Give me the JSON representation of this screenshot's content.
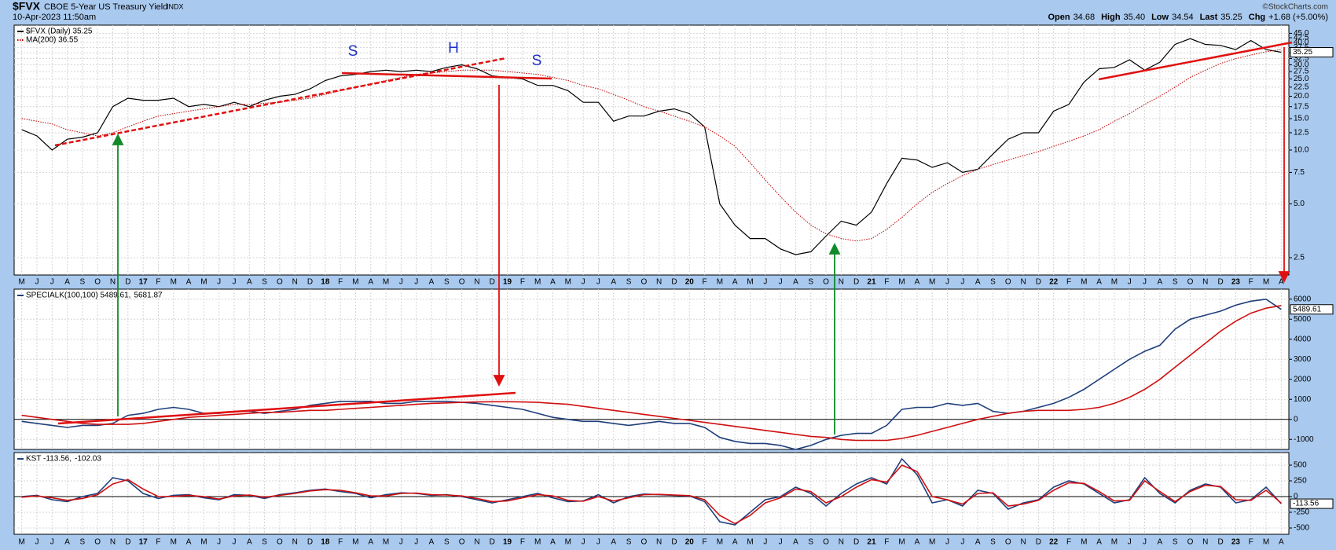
{
  "header": {
    "symbol": "$FVX",
    "name": "CBOE 5-Year US Treasury Yield",
    "exchange": "INDX",
    "date": "10-Apr-2023 11:50am",
    "credit": "©StockCharts.com",
    "quote": [
      {
        "label": "Open",
        "value": "34.68"
      },
      {
        "label": "High",
        "value": "35.40"
      },
      {
        "label": "Low",
        "value": "34.54"
      },
      {
        "label": "Last",
        "value": "35.25"
      },
      {
        "label": "Chg",
        "value": "+1.68 (+5.00%)"
      }
    ]
  },
  "annotations": [
    "S",
    "H",
    "S"
  ],
  "chart_data": [
    {
      "type": "line",
      "log_scale": true,
      "grid": true,
      "last_label": "35.25",
      "categories": [
        "M",
        "J",
        "J",
        "A",
        "S",
        "O",
        "N",
        "D",
        "17",
        "F",
        "M",
        "A",
        "M",
        "J",
        "J",
        "A",
        "S",
        "O",
        "N",
        "D",
        "18",
        "F",
        "M",
        "A",
        "M",
        "J",
        "J",
        "A",
        "S",
        "O",
        "N",
        "D",
        "19",
        "F",
        "M",
        "A",
        "M",
        "J",
        "J",
        "A",
        "S",
        "O",
        "N",
        "D",
        "20",
        "F",
        "M",
        "A",
        "M",
        "J",
        "J",
        "A",
        "S",
        "O",
        "N",
        "D",
        "21",
        "F",
        "M",
        "A",
        "M",
        "J",
        "J",
        "A",
        "S",
        "O",
        "N",
        "D",
        "22",
        "F",
        "M",
        "A",
        "M",
        "J",
        "J",
        "A",
        "S",
        "O",
        "N",
        "D",
        "23",
        "F",
        "M",
        "A"
      ],
      "series": [
        {
          "name": "$FVX (Daily) 35.25",
          "color": "#000000",
          "style": "solid",
          "values": [
            13,
            12,
            10,
            11.5,
            11.8,
            12.5,
            17.5,
            19.5,
            19,
            19,
            19.5,
            17.5,
            18,
            17.5,
            18.5,
            17.5,
            19,
            20,
            20.5,
            22,
            24.5,
            26,
            26.5,
            27.5,
            28,
            27.5,
            28,
            27.5,
            29,
            30,
            28.5,
            26,
            25.5,
            25,
            23,
            23,
            21.5,
            18.5,
            18.5,
            14.5,
            15.5,
            15.5,
            16.5,
            17,
            16,
            13.5,
            5,
            3.8,
            3.2,
            3.2,
            2.8,
            2.6,
            2.7,
            3.3,
            4,
            3.8,
            4.5,
            6.5,
            9,
            8.8,
            8,
            8.5,
            7.5,
            7.8,
            9.5,
            11.5,
            12.5,
            12.5,
            16.5,
            18,
            24,
            28.5,
            29,
            32,
            28,
            31,
            39,
            42,
            39,
            38.5,
            36.5,
            41,
            36.5,
            35.25
          ]
        },
        {
          "name": "MA(200) 36.55",
          "color": "#c00000",
          "style": "dotted",
          "values": [
            15,
            14.5,
            14,
            13,
            12.5,
            12,
            12.5,
            13.5,
            14.5,
            15.5,
            16,
            16.5,
            17,
            17.5,
            18,
            18,
            18.3,
            18.5,
            19,
            19.5,
            20.5,
            21.5,
            22.5,
            23.5,
            24.5,
            25.5,
            26.5,
            27,
            27.5,
            28,
            28,
            28,
            27.5,
            27,
            26.5,
            25.5,
            24.5,
            23,
            22,
            20.5,
            19,
            17.5,
            16.5,
            15.5,
            14.5,
            13.5,
            12,
            10.5,
            8.5,
            6.8,
            5.5,
            4.5,
            3.8,
            3.4,
            3.2,
            3.1,
            3.2,
            3.6,
            4.2,
            5,
            5.8,
            6.5,
            7.2,
            7.8,
            8.3,
            8.8,
            9.3,
            9.8,
            10.5,
            11.2,
            12,
            13,
            14.5,
            16,
            18,
            20,
            22.5,
            25.5,
            28,
            30.5,
            32.5,
            34,
            35.5,
            36.55
          ]
        }
      ],
      "ylim": [
        2,
        50
      ],
      "yticks": [
        2.5,
        {
          "value": 5,
          "label": "5.0"
        },
        7.5,
        {
          "value": 10,
          "label": "10.0"
        },
        12.5,
        {
          "value": 15,
          "label": "15.0"
        },
        17.5,
        {
          "value": 20,
          "label": "20.0"
        },
        22.5,
        {
          "value": 25,
          "label": "25.0"
        },
        27.5,
        {
          "value": 30,
          "label": "30.0"
        },
        32.5,
        {
          "value": 35,
          "label": "35.0"
        },
        37.5,
        {
          "value": 40,
          "label": "40.0"
        },
        42.5,
        {
          "value": 45,
          "label": "45.0"
        }
      ]
    },
    {
      "type": "line",
      "log_scale": false,
      "grid": true,
      "last_label": "5489.61",
      "series": [
        {
          "name": "SPECIALK(100,100) 5489.61,",
          "color": "#1f3f7a",
          "style": "solid",
          "values": [
            -100,
            -200,
            -300,
            -400,
            -300,
            -300,
            -200,
            200,
            300,
            500,
            600,
            500,
            300,
            300,
            400,
            400,
            300,
            400,
            500,
            700,
            800,
            900,
            900,
            900,
            800,
            800,
            900,
            900,
            900,
            850,
            800,
            700,
            600,
            500,
            300,
            100,
            0,
            -100,
            -100,
            -200,
            -300,
            -200,
            -100,
            -200,
            -200,
            -400,
            -900,
            -1100,
            -1200,
            -1200,
            -1300,
            -1500,
            -1300,
            -1000,
            -800,
            -700,
            -700,
            -300,
            500,
            600,
            600,
            800,
            700,
            800,
            400,
            300,
            400,
            600,
            800,
            1100,
            1500,
            2000,
            2500,
            3000,
            3400,
            3700,
            4500,
            5000,
            5200,
            5400,
            5700,
            5900,
            6000,
            5489.61
          ]
        },
        {
          "name": "5681.87",
          "color": "#d01010",
          "style": "solid",
          "values": [
            200,
            100,
            0,
            -100,
            -200,
            -250,
            -250,
            -250,
            -200,
            -100,
            0,
            100,
            150,
            200,
            250,
            300,
            350,
            350,
            400,
            450,
            450,
            500,
            550,
            600,
            650,
            700,
            750,
            800,
            820,
            850,
            870,
            880,
            880,
            870,
            850,
            800,
            750,
            650,
            550,
            450,
            350,
            250,
            150,
            50,
            -50,
            -150,
            -250,
            -350,
            -450,
            -550,
            -650,
            -750,
            -850,
            -900,
            -1000,
            -1050,
            -1050,
            -1050,
            -950,
            -800,
            -600,
            -400,
            -200,
            0,
            150,
            300,
            400,
            450,
            450,
            450,
            500,
            600,
            800,
            1100,
            1500,
            2000,
            2600,
            3200,
            3800,
            4400,
            4900,
            5300,
            5550,
            5681.87
          ]
        }
      ],
      "ylim": [
        -1500,
        6500
      ],
      "yticks": [
        -1000,
        0,
        1000,
        2000,
        3000,
        4000,
        5000,
        6000
      ]
    },
    {
      "type": "line",
      "log_scale": false,
      "grid": true,
      "last_label": "-113.56",
      "categories": [
        "M",
        "J",
        "J",
        "A",
        "S",
        "O",
        "N",
        "D",
        "17",
        "F",
        "M",
        "A",
        "M",
        "J",
        "J",
        "A",
        "S",
        "O",
        "N",
        "D",
        "18",
        "F",
        "M",
        "A",
        "M",
        "J",
        "J",
        "A",
        "S",
        "O",
        "N",
        "D",
        "19",
        "F",
        "M",
        "A",
        "M",
        "J",
        "J",
        "A",
        "S",
        "O",
        "N",
        "D",
        "20",
        "F",
        "M",
        "A",
        "M",
        "J",
        "J",
        "A",
        "S",
        "O",
        "N",
        "D",
        "21",
        "F",
        "M",
        "A",
        "M",
        "J",
        "J",
        "A",
        "S",
        "O",
        "N",
        "D",
        "22",
        "F",
        "M",
        "A",
        "M",
        "J",
        "J",
        "A",
        "S",
        "O",
        "N",
        "D",
        "23",
        "F",
        "M",
        "A"
      ],
      "series": [
        {
          "name": "KST -113.56,",
          "color": "#1f3f7a",
          "style": "solid",
          "values": [
            0,
            20,
            -50,
            -80,
            0,
            50,
            300,
            250,
            50,
            -30,
            20,
            30,
            -20,
            -50,
            30,
            20,
            -30,
            30,
            60,
            100,
            120,
            80,
            50,
            -20,
            30,
            60,
            50,
            20,
            30,
            0,
            -50,
            -100,
            -50,
            0,
            50,
            -20,
            -80,
            -70,
            30,
            -100,
            0,
            40,
            30,
            20,
            10,
            -80,
            -400,
            -450,
            -250,
            -50,
            0,
            150,
            50,
            -150,
            50,
            200,
            300,
            200,
            600,
            350,
            -100,
            -50,
            -150,
            100,
            50,
            -200,
            -100,
            -50,
            150,
            250,
            200,
            50,
            -100,
            -50,
            300,
            50,
            -100,
            100,
            200,
            150,
            -100,
            -50,
            150,
            -113.56
          ]
        },
        {
          "name": "-102.03",
          "color": "#d01010",
          "style": "solid",
          "values": [
            -10,
            10,
            -20,
            -60,
            -30,
            30,
            200,
            270,
            120,
            0,
            0,
            20,
            0,
            -40,
            10,
            25,
            -10,
            20,
            50,
            90,
            110,
            100,
            60,
            10,
            10,
            50,
            55,
            30,
            25,
            10,
            -30,
            -80,
            -70,
            -20,
            30,
            10,
            -60,
            -75,
            0,
            -70,
            -20,
            30,
            35,
            25,
            15,
            -50,
            -300,
            -430,
            -300,
            -100,
            -20,
            120,
            80,
            -100,
            0,
            150,
            270,
            230,
            500,
            400,
            0,
            -50,
            -120,
            50,
            60,
            -150,
            -120,
            -60,
            100,
            220,
            210,
            80,
            -70,
            -60,
            250,
            80,
            -80,
            80,
            180,
            160,
            -50,
            -60,
            100,
            -102.03
          ]
        }
      ],
      "ylim": [
        -600,
        700
      ],
      "yticks": [
        -500,
        -250,
        0,
        250,
        500
      ]
    }
  ]
}
